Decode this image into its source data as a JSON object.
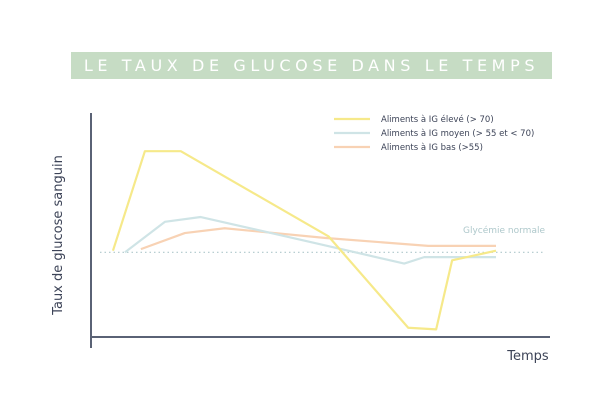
{
  "chart_data": {
    "type": "line",
    "title": "LE TAUX DE GLUCOSE DANS LE TEMPS",
    "xlabel": "Temps",
    "ylabel": "Taux de glucose sanguin",
    "xlim": [
      0,
      100
    ],
    "ylim": [
      0,
      100
    ],
    "grid": false,
    "legend_position": "top-right",
    "reference_line": {
      "label": "Glycémie normale",
      "y": 35,
      "color": "#aec8cb"
    },
    "series": [
      {
        "name": "Aliments à IG élevé (> 70)",
        "color": "#f6e98a",
        "x": [
          4,
          12,
          21,
          58,
          78,
          85,
          89,
          100
        ],
        "y": [
          36,
          98,
          98,
          45,
          -12,
          -13,
          30,
          36
        ]
      },
      {
        "name": "Aliments à IG moyen (> 55 et < 70)",
        "color": "#cfe4e6",
        "x": [
          7,
          17,
          26,
          56,
          77,
          82,
          87,
          100
        ],
        "y": [
          35,
          54,
          57,
          40,
          28,
          32,
          32,
          32
        ]
      },
      {
        "name": "Aliments à IG bas (>55)",
        "color": "#f8d2b4",
        "x": [
          11,
          22,
          32,
          57,
          83,
          100
        ],
        "y": [
          37,
          47,
          50,
          44,
          39,
          39
        ]
      }
    ]
  },
  "colors": {
    "axis": "#5a6275",
    "title_band": "#c6dcc4",
    "text": "#3c4357"
  }
}
